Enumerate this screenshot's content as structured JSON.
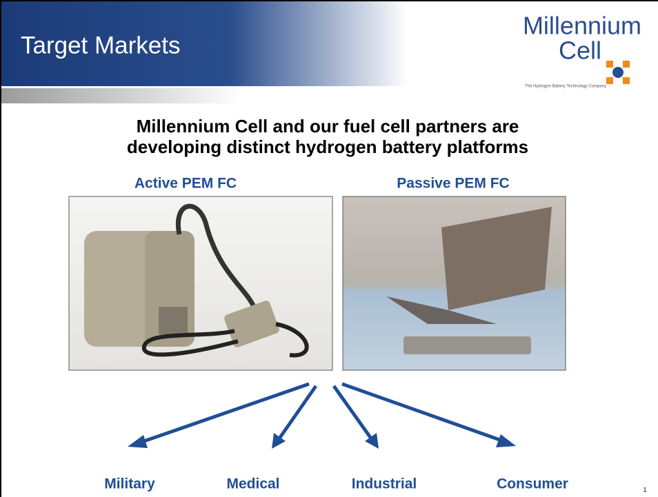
{
  "header": {
    "title": "Target Markets"
  },
  "logo": {
    "line1": "Millennium",
    "line2": "Cell",
    "tagline": "The Hydrogen Battery Technology Company"
  },
  "headline": {
    "lines": [
      "Millennium Cell and our fuel cell partners are",
      "developing distinct hydrogen battery platforms"
    ]
  },
  "platforms": [
    {
      "label": "Active PEM FC"
    },
    {
      "label": "Passive PEM FC"
    }
  ],
  "markets": [
    "Military",
    "Medical",
    "Industrial",
    "Consumer"
  ],
  "page_number": "1"
}
